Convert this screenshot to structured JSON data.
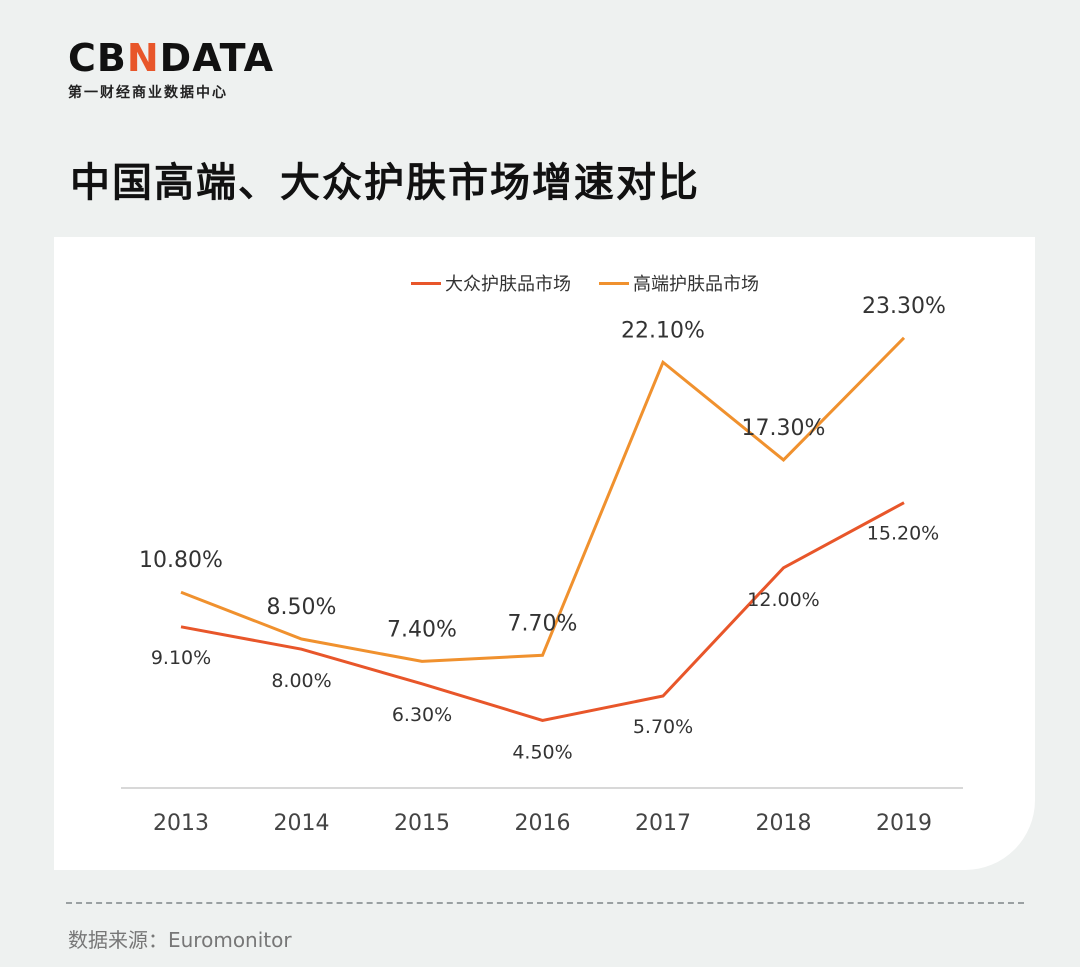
{
  "logo": {
    "main_left": "CB",
    "main_accent": "N",
    "main_right": "DATA",
    "sub": "第一财经商业数据中心"
  },
  "title": "中国高端、大众护肤市场增速对比",
  "source": "数据来源：Euromonitor",
  "colors": {
    "mass": "#e8562a",
    "premium": "#f0912e",
    "axis": "#cccccc"
  },
  "chart_data": {
    "type": "line",
    "title": "",
    "xlabel": "",
    "ylabel": "",
    "x": [
      "2013",
      "2014",
      "2015",
      "2016",
      "2017",
      "2018",
      "2019"
    ],
    "legend_position": "top-center",
    "grid": false,
    "ylim": [
      0,
      25
    ],
    "series": [
      {
        "name": "大众护肤品市场",
        "values": [
          9.1,
          8.0,
          6.3,
          4.5,
          5.7,
          12.0,
          15.2
        ],
        "labels": [
          "9.10%",
          "8.00%",
          "6.30%",
          "4.50%",
          "5.70%",
          "12.00%",
          "15.20%"
        ]
      },
      {
        "name": "高端护肤品市场",
        "values": [
          10.8,
          8.5,
          7.4,
          7.7,
          22.1,
          17.3,
          23.3
        ],
        "labels": [
          "10.80%",
          "8.50%",
          "7.40%",
          "7.70%",
          "22.10%",
          "17.30%",
          "23.30%"
        ]
      }
    ]
  }
}
